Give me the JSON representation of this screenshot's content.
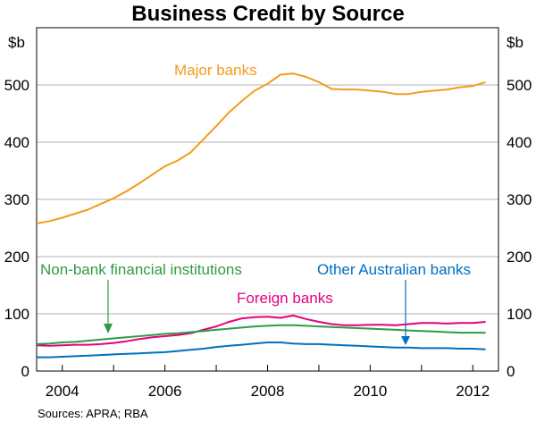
{
  "chart_data": {
    "type": "line",
    "title": "Business Credit by Source",
    "y_unit_left": "$b",
    "y_unit_right": "$b",
    "ylim": [
      0,
      600
    ],
    "y_ticks": [
      0,
      100,
      200,
      300,
      400,
      500
    ],
    "xlim": [
      2003.5,
      2012.5
    ],
    "x_ticks": [
      2004,
      2006,
      2008,
      2010,
      2012
    ],
    "grid": "horizontal",
    "source": "Sources: APRA; RBA",
    "series": [
      {
        "name": "Major banks",
        "color": "#f39c1e",
        "x": [
          2003.5,
          2003.75,
          2004.0,
          2004.25,
          2004.5,
          2004.75,
          2005.0,
          2005.25,
          2005.5,
          2005.75,
          2006.0,
          2006.25,
          2006.5,
          2006.75,
          2007.0,
          2007.25,
          2007.5,
          2007.75,
          2008.0,
          2008.25,
          2008.5,
          2008.75,
          2009.0,
          2009.25,
          2009.5,
          2009.75,
          2010.0,
          2010.25,
          2010.5,
          2010.75,
          2011.0,
          2011.25,
          2011.5,
          2011.75,
          2012.0,
          2012.25
        ],
        "values": [
          258,
          262,
          268,
          275,
          282,
          292,
          302,
          314,
          328,
          343,
          358,
          368,
          382,
          405,
          428,
          452,
          472,
          490,
          502,
          518,
          520,
          514,
          505,
          493,
          492,
          492,
          490,
          488,
          484,
          484,
          488,
          490,
          492,
          496,
          498,
          505
        ]
      },
      {
        "name": "Foreign banks",
        "color": "#e6007e",
        "x": [
          2003.5,
          2003.75,
          2004.0,
          2004.25,
          2004.5,
          2004.75,
          2005.0,
          2005.25,
          2005.5,
          2005.75,
          2006.0,
          2006.25,
          2006.5,
          2006.75,
          2007.0,
          2007.25,
          2007.5,
          2007.75,
          2008.0,
          2008.25,
          2008.5,
          2008.75,
          2009.0,
          2009.25,
          2009.5,
          2009.75,
          2010.0,
          2010.25,
          2010.5,
          2010.75,
          2011.0,
          2011.25,
          2011.5,
          2011.75,
          2012.0,
          2012.25
        ],
        "values": [
          45,
          44,
          45,
          46,
          46,
          47,
          49,
          52,
          56,
          59,
          61,
          63,
          66,
          72,
          78,
          86,
          92,
          94,
          95,
          93,
          97,
          91,
          86,
          82,
          80,
          80,
          81,
          81,
          80,
          82,
          84,
          84,
          83,
          84,
          84,
          86
        ]
      },
      {
        "name": "Non-bank financial institutions",
        "color": "#2e9b47",
        "x": [
          2003.5,
          2003.75,
          2004.0,
          2004.25,
          2004.5,
          2004.75,
          2005.0,
          2005.25,
          2005.5,
          2005.75,
          2006.0,
          2006.25,
          2006.5,
          2006.75,
          2007.0,
          2007.25,
          2007.5,
          2007.75,
          2008.0,
          2008.25,
          2008.5,
          2008.75,
          2009.0,
          2009.25,
          2009.5,
          2009.75,
          2010.0,
          2010.25,
          2010.5,
          2010.75,
          2011.0,
          2011.25,
          2011.5,
          2011.75,
          2012.0,
          2012.25
        ],
        "values": [
          47,
          48,
          50,
          51,
          53,
          55,
          57,
          59,
          61,
          63,
          65,
          66,
          68,
          70,
          72,
          74,
          76,
          78,
          79,
          80,
          80,
          79,
          78,
          77,
          76,
          75,
          74,
          73,
          72,
          71,
          70,
          69,
          68,
          67,
          67,
          67
        ]
      },
      {
        "name": "Other Australian banks",
        "color": "#0070c0",
        "x": [
          2003.5,
          2003.75,
          2004.0,
          2004.25,
          2004.5,
          2004.75,
          2005.0,
          2005.25,
          2005.5,
          2005.75,
          2006.0,
          2006.25,
          2006.5,
          2006.75,
          2007.0,
          2007.25,
          2007.5,
          2007.75,
          2008.0,
          2008.25,
          2008.5,
          2008.75,
          2009.0,
          2009.25,
          2009.5,
          2009.75,
          2010.0,
          2010.25,
          2010.5,
          2010.75,
          2011.0,
          2011.25,
          2011.5,
          2011.75,
          2012.0,
          2012.25
        ],
        "values": [
          24,
          24,
          25,
          26,
          27,
          28,
          29,
          30,
          31,
          32,
          33,
          35,
          37,
          39,
          42,
          44,
          46,
          48,
          50,
          50,
          48,
          47,
          47,
          46,
          45,
          44,
          43,
          42,
          41,
          41,
          40,
          40,
          40,
          39,
          39,
          38
        ]
      }
    ]
  }
}
